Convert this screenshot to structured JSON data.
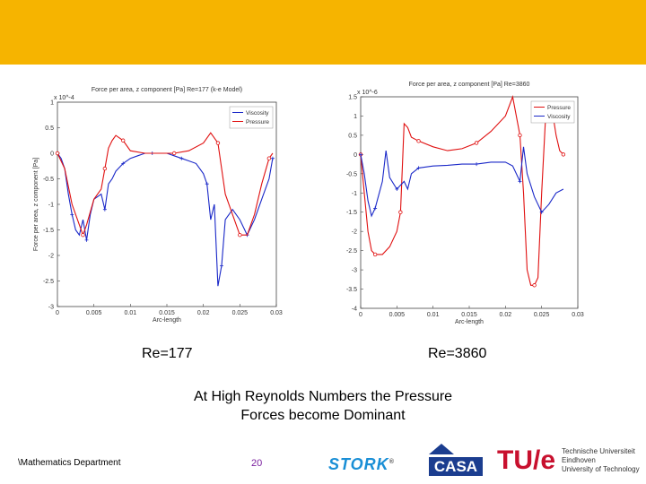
{
  "colors": {
    "header": "#f6b400",
    "pressure": "#e01010",
    "viscosity": "#1a28c8",
    "page_number": "#7a1f9e"
  },
  "labels": {
    "left": "Re=177",
    "right": "Re=3860"
  },
  "conclusion": {
    "line1": "At High Reynolds Numbers the Pressure",
    "line2": "Forces become Dominant"
  },
  "footer": {
    "department": "\\Mathematics Department",
    "page": "20"
  },
  "logos": {
    "stork": "STORK",
    "stork_mark": "®",
    "casa": "CASA",
    "tue_mark": "TU/e",
    "tue_text": [
      "Technische Universiteit",
      "Eindhoven",
      "University of Technology"
    ]
  },
  "chart_data": [
    {
      "type": "line",
      "title": "Force per area, z component [Pa] Re=177 (k-e Model)",
      "xlabel": "Arc-length",
      "ylabel": "Force per area, z component [Pa]",
      "y_exponent": "x 10^-4",
      "xlim": [
        0,
        0.03
      ],
      "ylim": [
        -3,
        1
      ],
      "xticks": [
        "0",
        "0.005",
        "0.01",
        "0.015",
        "0.02",
        "0.025",
        "0.03"
      ],
      "yticks": [
        "1",
        "0.5",
        "0",
        "-0.5",
        "-1",
        "-1.5",
        "-2",
        "-2.5",
        "-3"
      ],
      "legend": [
        "Viscosity",
        "Pressure"
      ],
      "legend_position": "top-right",
      "series": [
        {
          "name": "Viscosity",
          "x": [
            0,
            0.0005,
            0.001,
            0.0015,
            0.002,
            0.0025,
            0.003,
            0.0035,
            0.004,
            0.0045,
            0.005,
            0.006,
            0.0065,
            0.007,
            0.0075,
            0.008,
            0.009,
            0.01,
            0.011,
            0.012,
            0.013,
            0.014,
            0.015,
            0.016,
            0.017,
            0.018,
            0.019,
            0.02,
            0.0205,
            0.021,
            0.0215,
            0.022,
            0.0225,
            0.023,
            0.024,
            0.025,
            0.026,
            0.027,
            0.028,
            0.029,
            0.0295
          ],
          "values": [
            0,
            -0.1,
            -0.3,
            -0.8,
            -1.2,
            -1.5,
            -1.6,
            -1.3,
            -1.7,
            -1.2,
            -0.9,
            -0.8,
            -1.1,
            -0.6,
            -0.5,
            -0.35,
            -0.2,
            -0.1,
            -0.05,
            0,
            0,
            0,
            0,
            -0.05,
            -0.1,
            -0.15,
            -0.2,
            -0.4,
            -0.6,
            -1.3,
            -1.0,
            -2.6,
            -2.2,
            -1.3,
            -1.1,
            -1.3,
            -1.6,
            -1.3,
            -0.9,
            -0.5,
            -0.1
          ]
        },
        {
          "name": "Pressure",
          "x": [
            0,
            0.001,
            0.002,
            0.003,
            0.0035,
            0.004,
            0.005,
            0.006,
            0.0065,
            0.007,
            0.0075,
            0.008,
            0.009,
            0.01,
            0.012,
            0.014,
            0.016,
            0.018,
            0.02,
            0.021,
            0.022,
            0.0225,
            0.023,
            0.024,
            0.025,
            0.026,
            0.027,
            0.028,
            0.029,
            0.0295
          ],
          "values": [
            0,
            -0.3,
            -1.0,
            -1.4,
            -1.6,
            -1.4,
            -0.9,
            -0.7,
            -0.3,
            0.1,
            0.25,
            0.35,
            0.25,
            0.05,
            0,
            0,
            0,
            0.05,
            0.2,
            0.4,
            0.2,
            -0.3,
            -0.8,
            -1.2,
            -1.6,
            -1.6,
            -1.2,
            -0.6,
            -0.1,
            0
          ]
        }
      ]
    },
    {
      "type": "line",
      "title": "Force per area, z component [Pa] Re=3860",
      "xlabel": "Arc-length",
      "ylabel": "",
      "y_exponent": "x 10^-6",
      "xlim": [
        0,
        0.03
      ],
      "ylim": [
        -4,
        1.5
      ],
      "xticks": [
        "0",
        "0.005",
        "0.01",
        "0.015",
        "0.02",
        "0.025",
        "0.03"
      ],
      "yticks": [
        "1.5",
        "1",
        "0.5",
        "0",
        "-0.5",
        "-1",
        "-1.5",
        "-2",
        "-2.5",
        "-3",
        "-3.5",
        "-4"
      ],
      "legend": [
        "Pressure",
        "Viscosity"
      ],
      "legend_position": "top-right",
      "series": [
        {
          "name": "Pressure",
          "x": [
            0,
            0.0005,
            0.001,
            0.0015,
            0.002,
            0.003,
            0.004,
            0.005,
            0.0055,
            0.006,
            0.0065,
            0.007,
            0.008,
            0.01,
            0.012,
            0.014,
            0.016,
            0.018,
            0.02,
            0.021,
            0.022,
            0.0225,
            0.023,
            0.0235,
            0.024,
            0.0245,
            0.025,
            0.0255,
            0.026,
            0.0265,
            0.027,
            0.0275,
            0.028
          ],
          "values": [
            0,
            -1.0,
            -2.0,
            -2.5,
            -2.6,
            -2.6,
            -2.4,
            -2.0,
            -1.5,
            0.8,
            0.7,
            0.45,
            0.35,
            0.2,
            0.1,
            0.15,
            0.3,
            0.6,
            1.0,
            1.5,
            0.5,
            -1.0,
            -3.0,
            -3.4,
            -3.4,
            -3.2,
            -1.0,
            0.8,
            1.2,
            1.1,
            0.5,
            0.1,
            0
          ]
        },
        {
          "name": "Viscosity",
          "x": [
            0,
            0.0005,
            0.001,
            0.0015,
            0.002,
            0.003,
            0.0035,
            0.004,
            0.005,
            0.006,
            0.0065,
            0.007,
            0.008,
            0.01,
            0.012,
            0.014,
            0.016,
            0.018,
            0.02,
            0.021,
            0.022,
            0.0225,
            0.023,
            0.024,
            0.025,
            0.026,
            0.027,
            0.028
          ],
          "values": [
            0,
            -0.5,
            -1.2,
            -1.6,
            -1.4,
            -0.7,
            0.1,
            -0.6,
            -0.9,
            -0.7,
            -0.9,
            -0.5,
            -0.35,
            -0.3,
            -0.28,
            -0.25,
            -0.25,
            -0.2,
            -0.2,
            -0.3,
            -0.7,
            0.2,
            -0.5,
            -1.1,
            -1.5,
            -1.3,
            -1.0,
            -0.9
          ]
        }
      ]
    }
  ]
}
